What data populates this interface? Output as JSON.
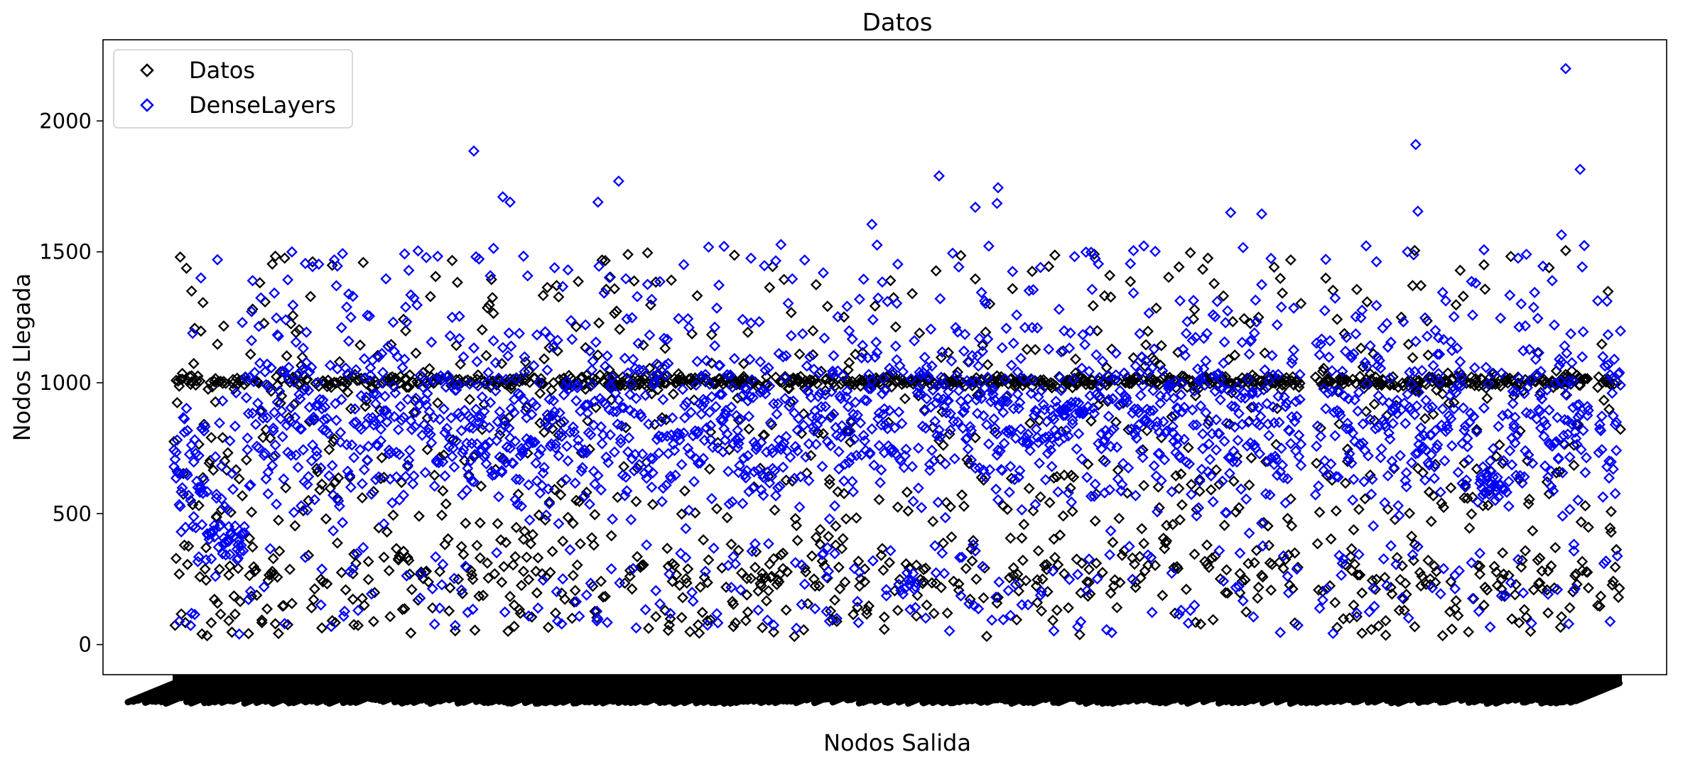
{
  "chart_data": {
    "type": "scatter",
    "title": "Datos",
    "xlabel": "Nodos Salida",
    "ylabel": "Nodos Llegada",
    "ylim": [
      -115,
      2310
    ],
    "yticks": [
      0,
      500,
      1000,
      1500,
      2000
    ],
    "x_count": 1400,
    "x_ticks_note": "x tick labels are illegible (overlapping node names)",
    "grid": false,
    "legend": "top-left",
    "marker": "diamond-open",
    "series": [
      {
        "name": "Datos",
        "color": "#000000"
      },
      {
        "name": "DenseLayers",
        "color": "#0000ff"
      }
    ],
    "notable_points": [
      {
        "series": "DenseLayers",
        "x_index": 1346,
        "y": 2200
      },
      {
        "series": "DenseLayers",
        "x_index": 1201,
        "y": 1910
      },
      {
        "series": "DenseLayers",
        "x_index": 290,
        "y": 1885
      },
      {
        "series": "DenseLayers",
        "x_index": 1360,
        "y": 1815
      },
      {
        "series": "DenseLayers",
        "x_index": 740,
        "y": 1790
      },
      {
        "series": "DenseLayers",
        "x_index": 430,
        "y": 1770
      },
      {
        "series": "DenseLayers",
        "x_index": 797,
        "y": 1745
      },
      {
        "series": "DenseLayers",
        "x_index": 318,
        "y": 1710
      },
      {
        "series": "DenseLayers",
        "x_index": 325,
        "y": 1690
      },
      {
        "series": "DenseLayers",
        "x_index": 796,
        "y": 1685
      },
      {
        "series": "DenseLayers",
        "x_index": 775,
        "y": 1670
      },
      {
        "series": "DenseLayers",
        "x_index": 1203,
        "y": 1655
      },
      {
        "series": "DenseLayers",
        "x_index": 1022,
        "y": 1650
      },
      {
        "series": "DenseLayers",
        "x_index": 1052,
        "y": 1645
      },
      {
        "series": "DenseLayers",
        "x_index": 410,
        "y": 1690
      },
      {
        "series": "DenseLayers",
        "x_index": 1342,
        "y": 1565
      },
      {
        "series": "DenseLayers",
        "x_index": 675,
        "y": 1605
      },
      {
        "series": "Datos",
        "x_index": 6,
        "y": 1480
      },
      {
        "series": "Datos",
        "x_index": 17,
        "y": 1350
      },
      {
        "series": "Datos",
        "x_index": 1346,
        "y": 1505
      },
      {
        "series": "Datos",
        "x_index": 1200,
        "y": 1505
      }
    ]
  }
}
